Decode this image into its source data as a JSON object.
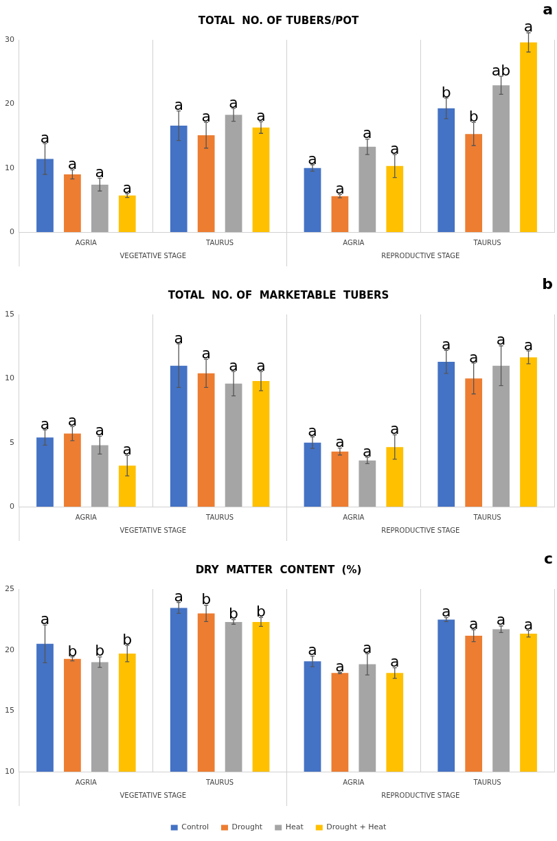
{
  "chart_data": [
    {
      "type": "bar",
      "title": "TOTAL  NO. OF TUBERS/POT",
      "categories": [
        "AGRIA",
        "TAURUS",
        "AGRIA",
        "TAURUS"
      ],
      "annotations": [
        "a",
        "VEGETATIVE STAGE",
        "REPRODUCTIVE STAGE"
      ],
      "ylim": [
        0,
        30
      ],
      "yticks": [
        0,
        10,
        20,
        30
      ],
      "legend": false,
      "series": [
        {
          "color": "#4472c4",
          "values": [
            11.4,
            16.6,
            10.0,
            19.3
          ],
          "errors": [
            2.4,
            2.3,
            0.5,
            1.6
          ],
          "value_labels": [
            "a",
            "a",
            "a",
            "b"
          ]
        },
        {
          "color": "#ed7d31",
          "values": [
            9.0,
            15.1,
            5.6,
            15.3
          ],
          "errors": [
            0.7,
            2.0,
            0.25,
            1.8
          ],
          "value_labels": [
            "a",
            "a",
            "a",
            "b"
          ]
        },
        {
          "color": "#a5a5a5",
          "values": [
            7.4,
            18.3,
            13.3,
            22.9
          ],
          "errors": [
            1.0,
            1.0,
            1.2,
            1.4
          ],
          "value_labels": [
            "a",
            "a",
            "a",
            "ab"
          ]
        },
        {
          "color": "#ffc000",
          "values": [
            5.7,
            16.3,
            10.3,
            29.6
          ],
          "errors": [
            0.3,
            0.9,
            1.8,
            1.5
          ],
          "value_labels": [
            "a",
            "a",
            "a",
            "a"
          ]
        }
      ]
    },
    {
      "type": "bar",
      "title": "TOTAL  NO. OF  MARKETABLE  TUBERS",
      "categories": [
        "AGRIA",
        "TAURUS",
        "AGRIA",
        "TAURUS"
      ],
      "annotations": [
        "b",
        "VEGETATIVE STAGE",
        "REPRODUCTIVE STAGE"
      ],
      "ylim": [
        0,
        15
      ],
      "yticks": [
        0,
        5,
        10,
        15
      ],
      "legend": false,
      "series": [
        {
          "color": "#4472c4",
          "values": [
            5.4,
            11.0,
            5.0,
            11.3
          ],
          "errors": [
            0.6,
            1.7,
            0.45,
            0.9
          ],
          "value_labels": [
            "a",
            "a",
            "a",
            "a"
          ]
        },
        {
          "color": "#ed7d31",
          "values": [
            5.7,
            10.4,
            4.3,
            10.0
          ],
          "errors": [
            0.55,
            1.1,
            0.27,
            1.2
          ],
          "value_labels": [
            "a",
            "a",
            "a",
            "a"
          ]
        },
        {
          "color": "#a5a5a5",
          "values": [
            4.8,
            9.6,
            3.6,
            11.0
          ],
          "errors": [
            0.7,
            0.95,
            0.25,
            1.55
          ],
          "value_labels": [
            "a",
            "a",
            "a",
            "a"
          ]
        },
        {
          "color": "#ffc000",
          "values": [
            3.2,
            9.8,
            4.65,
            11.65
          ],
          "errors": [
            0.8,
            0.75,
            0.95,
            0.5
          ],
          "value_labels": [
            "a",
            "a",
            "a",
            "a"
          ]
        }
      ]
    },
    {
      "type": "bar",
      "title": "DRY  MATTER  CONTENT  (%)",
      "categories": [
        "AGRIA",
        "TAURUS",
        "AGRIA",
        "TAURUS"
      ],
      "annotations": [
        "c",
        "VEGETATIVE STAGE",
        "REPRODUCTIVE STAGE"
      ],
      "ylim": [
        10,
        25
      ],
      "yticks": [
        10,
        15,
        20,
        25
      ],
      "legend": "bottom",
      "series": [
        {
          "name": "Control",
          "color": "#4472c4",
          "values": [
            20.5,
            23.45,
            19.06,
            22.49
          ],
          "errors": [
            1.55,
            0.45,
            0.44,
            0.16
          ],
          "value_labels": [
            "a",
            "a",
            "a",
            "a"
          ]
        },
        {
          "name": "Drought",
          "color": "#ed7d31",
          "values": [
            19.26,
            23.0,
            18.1,
            21.17
          ],
          "errors": [
            0.16,
            0.67,
            0.05,
            0.49
          ],
          "value_labels": [
            "b",
            "b",
            "a",
            "a"
          ]
        },
        {
          "name": "Heat",
          "color": "#a5a5a5",
          "values": [
            19.0,
            22.3,
            18.82,
            21.7
          ],
          "errors": [
            0.43,
            0.19,
            0.88,
            0.27
          ],
          "value_labels": [
            "b",
            "b",
            "a",
            "a"
          ]
        },
        {
          "name": "Drought + Heat",
          "color": "#ffc000",
          "values": [
            19.7,
            22.3,
            18.1,
            21.33
          ],
          "errors": [
            0.67,
            0.37,
            0.44,
            0.27
          ],
          "value_labels": [
            "b",
            "b",
            "a",
            "a"
          ]
        }
      ]
    }
  ]
}
